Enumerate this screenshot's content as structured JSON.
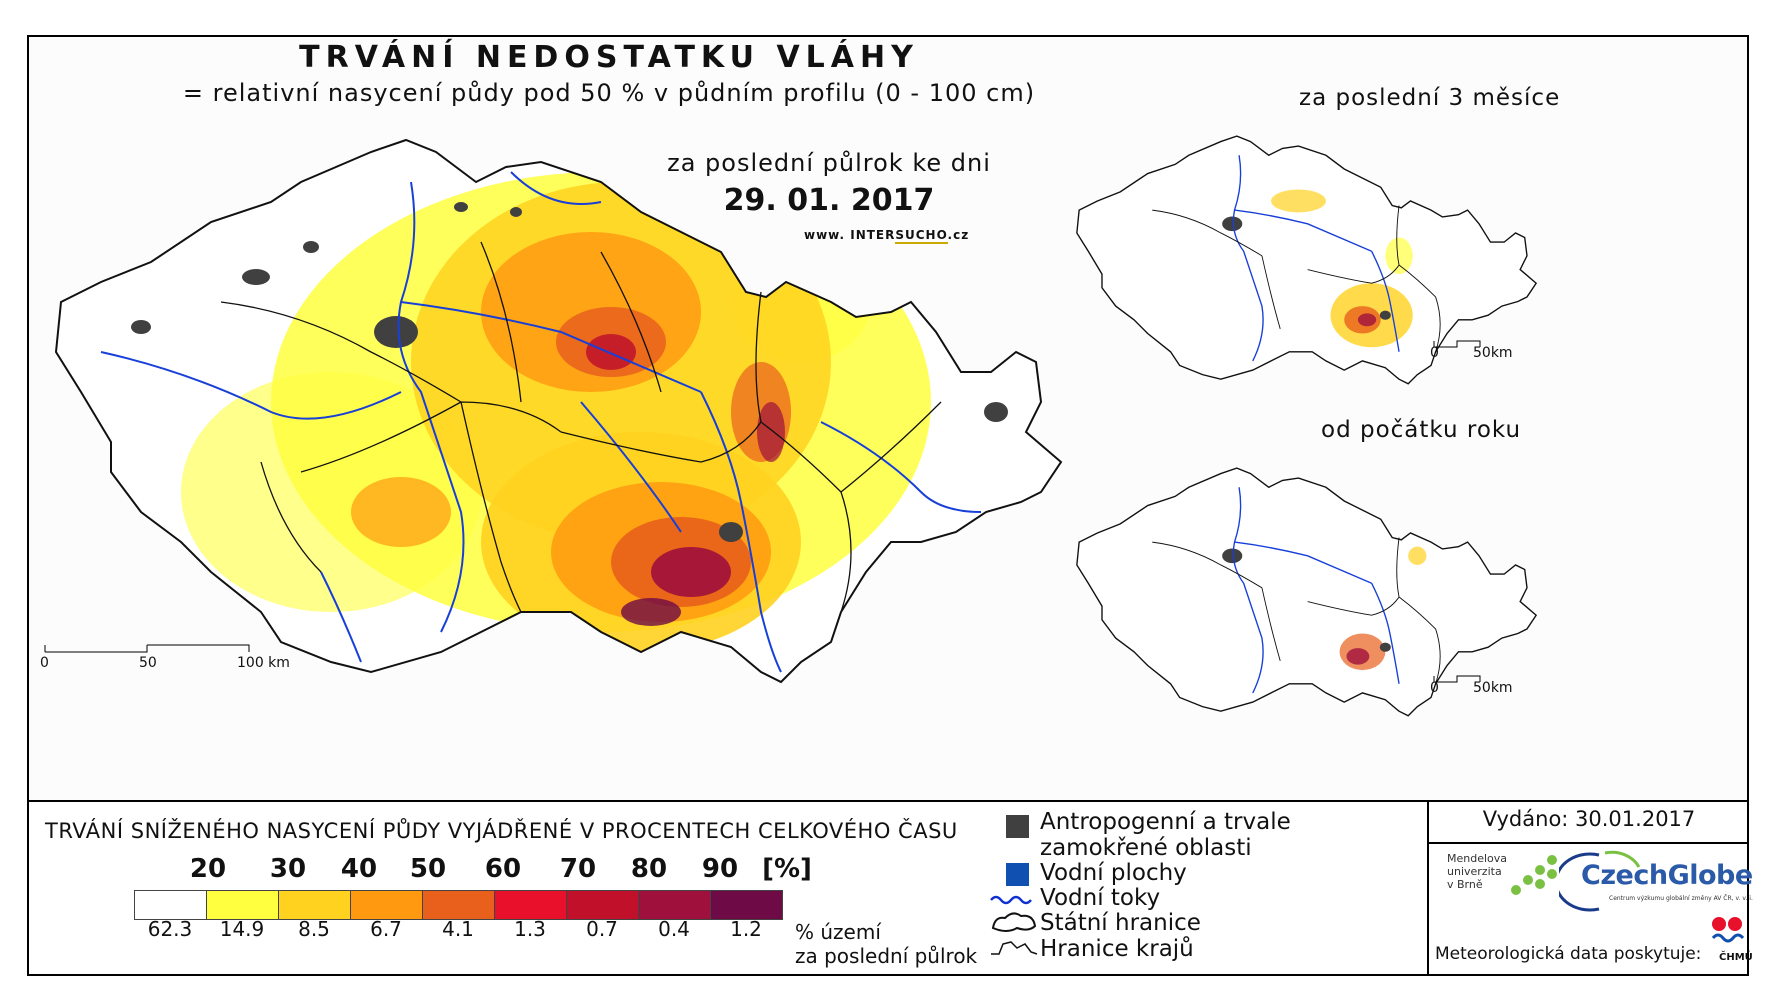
{
  "header": {
    "title": "TRVÁNÍ NEDOSTATKU VLÁHY",
    "subtitle": "= relativní nasycení půdy pod 50 % v půdním profilu (0 - 100 cm)",
    "period": "za poslední půlrok ke dni",
    "date": "29. 01. 2017",
    "website_prefix": "www. INTER",
    "website_highlight": "SUCHO",
    "website_suffix": ".cz"
  },
  "main_map": {
    "scale_labels": [
      "0",
      "50",
      "100 km"
    ]
  },
  "small_maps": [
    {
      "title": "za poslední 3 měsíce",
      "scale_labels": [
        "0",
        "50km"
      ]
    },
    {
      "title": "od počátku roku",
      "scale_labels": [
        "0",
        "50km"
      ]
    }
  ],
  "legend": {
    "title": "TRVÁNÍ SNÍŽENÉHO NASYCENÍ PŮDY VYJÁDŘENÉ V PROCENTECH CELKOVÉHO ČASU",
    "thresholds": [
      "20",
      "30",
      "40",
      "50",
      "60",
      "70",
      "80",
      "90",
      "[%]"
    ],
    "bins": [
      {
        "color": "#ffffff",
        "percent": "62.3"
      },
      {
        "color": "#ffff40",
        "percent": "14.9"
      },
      {
        "color": "#ffd21f",
        "percent": "8.5"
      },
      {
        "color": "#ff9a10",
        "percent": "6.7"
      },
      {
        "color": "#e8601c",
        "percent": "4.1"
      },
      {
        "color": "#e8102a",
        "percent": "1.3"
      },
      {
        "color": "#c0102a",
        "percent": "0.7"
      },
      {
        "color": "#a0103c",
        "percent": "0.4"
      },
      {
        "color": "#6e0a46",
        "percent": "1.2"
      }
    ],
    "note_line1": "% území",
    "note_line2": "za poslední půlrok"
  },
  "map_key": {
    "anthropogenic_line1": "Antropogenní a trvale",
    "anthropogenic_line2": "zamokřené oblasti",
    "water_bodies": "Vodní plochy",
    "rivers": "Vodní toky",
    "state_border": "Státní hranice",
    "regions_border": "Hranice krajů",
    "colors": {
      "anthropogenic": "#404040",
      "water": "#1050b0",
      "rivers": "#1030d0"
    }
  },
  "footer": {
    "issued": "Vydáno: 30.01.2017",
    "logo_mendel": [
      "Mendelova",
      "univerzita",
      "v Brně"
    ],
    "logo_czechglobe": "CzechGlobe",
    "logo_czechglobe_sub": "Centrum výzkumu globální změny AV ČR, v. v. i.",
    "meteo": "Meteorologická data poskytuje:",
    "chmu": "ČHMÚ"
  }
}
